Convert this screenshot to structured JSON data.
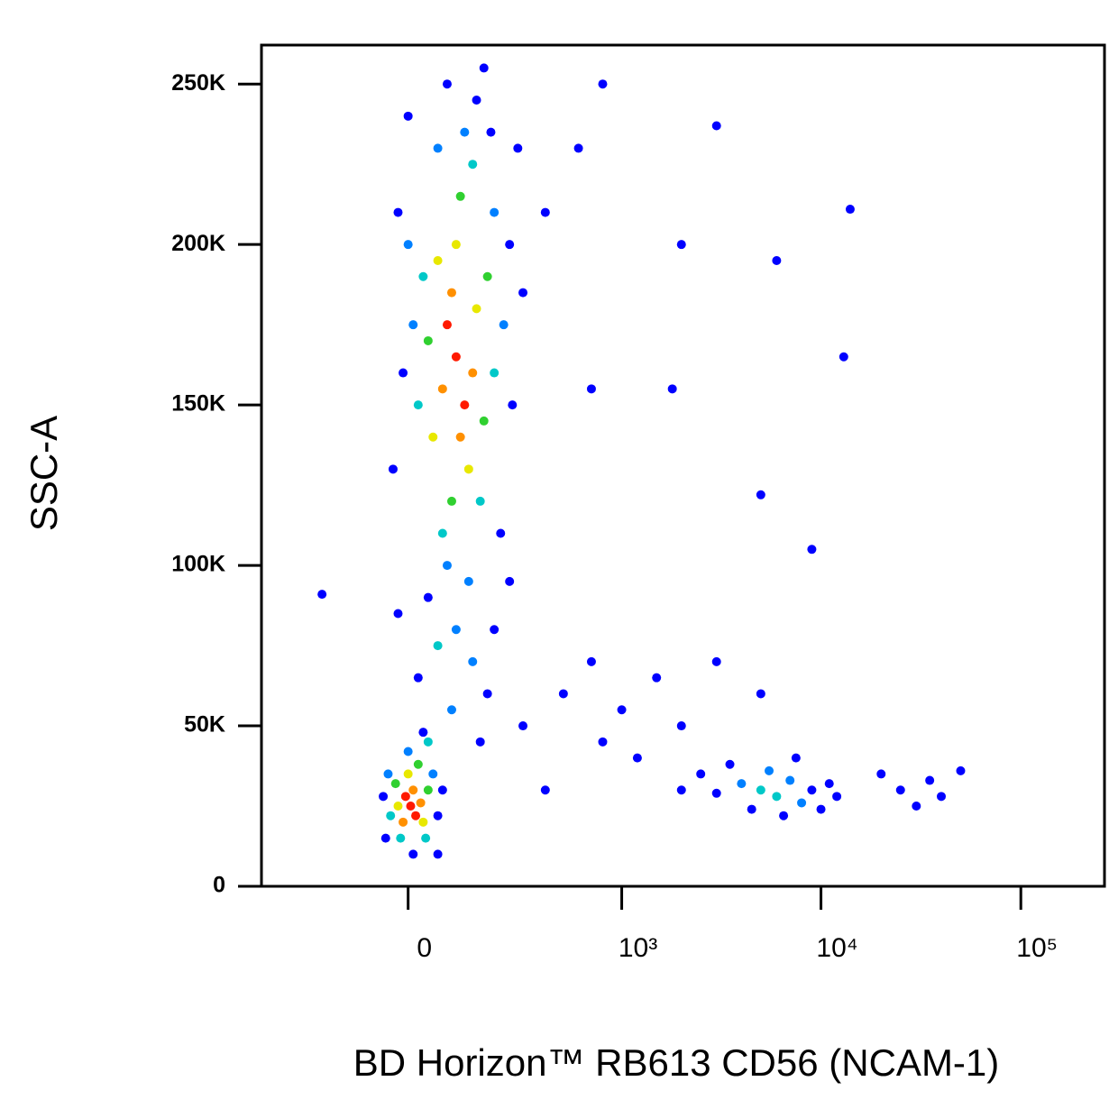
{
  "chart_data": {
    "type": "scatter",
    "x_label": "BD Horizon™ RB613 CD56 (NCAM-1)",
    "y_label": "SSC-A",
    "xscale": "biexponential",
    "xlim": [
      -450,
      262144
    ],
    "ylim": [
      0,
      262144
    ],
    "xticks": [
      0,
      {
        "value": 1000,
        "label": "10³"
      },
      {
        "value": 10000,
        "label": "10⁴"
      },
      {
        "value": 100000,
        "label": "10⁵"
      }
    ],
    "yticks": [
      0,
      {
        "value": 50000,
        "label": "50K"
      },
      {
        "value": 100000,
        "label": "100K"
      },
      {
        "value": 150000,
        "label": "150K"
      },
      {
        "value": 200000,
        "label": "200K"
      },
      {
        "value": 250000,
        "label": "250K"
      }
    ],
    "x": [
      100,
      120,
      80,
      110,
      90,
      140,
      70,
      130,
      60,
      150,
      100,
      50,
      170,
      40,
      110,
      90,
      180,
      30,
      140,
      70,
      200,
      20,
      160,
      120,
      60,
      10,
      230,
      80,
      200,
      0,
      130,
      150,
      80,
      -10,
      260,
      250,
      -20,
      40,
      170,
      280,
      220,
      -30,
      300,
      0,
      190,
      100,
      60,
      140,
      20,
      180,
      90,
      40,
      200,
      250,
      -20,
      160,
      5,
      15,
      -5,
      10,
      -10,
      25,
      0,
      30,
      -20,
      20,
      -25,
      40,
      -15,
      35,
      -35,
      50,
      0,
      -40,
      60,
      -45,
      30,
      70,
      -50,
      10,
      5000,
      6000,
      4000,
      7000,
      3000,
      8000,
      9000,
      5500,
      4500,
      2500,
      11000,
      10000,
      3500,
      7500,
      6500,
      2000,
      12000,
      20000,
      25000,
      30000,
      35000,
      40000,
      50000,
      500,
      700,
      1000,
      1500,
      2000,
      800,
      1200,
      3000,
      5000,
      600,
      800,
      400,
      2000,
      3000,
      6000,
      14000,
      1800,
      13000,
      700,
      5000,
      9000,
      400,
      300,
      -200,
      60
    ],
    "y": [
      165000,
      150000,
      175000,
      140000,
      185000,
      160000,
      155000,
      130000,
      195000,
      180000,
      200000,
      140000,
      145000,
      170000,
      215000,
      120000,
      190000,
      190000,
      225000,
      110000,
      160000,
      150000,
      120000,
      235000,
      230000,
      175000,
      175000,
      100000,
      210000,
      200000,
      95000,
      245000,
      250000,
      160000,
      150000,
      200000,
      210000,
      90000,
      255000,
      230000,
      110000,
      130000,
      185000,
      240000,
      235000,
      80000,
      75000,
      70000,
      65000,
      60000,
      55000,
      45000,
      80000,
      95000,
      85000,
      45000,
      25000,
      22000,
      28000,
      30000,
      20000,
      26000,
      35000,
      20000,
      25000,
      38000,
      32000,
      30000,
      15000,
      15000,
      22000,
      35000,
      42000,
      35000,
      22000,
      15000,
      48000,
      30000,
      28000,
      10000,
      30000,
      28000,
      32000,
      33000,
      29000,
      26000,
      30000,
      36000,
      24000,
      35000,
      32000,
      24000,
      38000,
      40000,
      22000,
      30000,
      28000,
      35000,
      30000,
      25000,
      33000,
      28000,
      36000,
      60000,
      70000,
      55000,
      65000,
      50000,
      45000,
      40000,
      70000,
      60000,
      230000,
      250000,
      210000,
      200000,
      237000,
      195000,
      211000,
      155000,
      165000,
      155000,
      122000,
      105000,
      30000,
      50000,
      91000,
      10000
    ],
    "colors": [
      "#ff1a00",
      "#ff1a00",
      "#ff1a00",
      "#ff9000",
      "#ff9000",
      "#ff9000",
      "#ff9000",
      "#e8e800",
      "#e8e800",
      "#e8e800",
      "#e8e800",
      "#e8e800",
      "#30d030",
      "#30d030",
      "#30d030",
      "#30d030",
      "#30d030",
      "#00c8c8",
      "#00c8c8",
      "#00c8c8",
      "#00c8c8",
      "#00c8c8",
      "#00c8c8",
      "#0080ff",
      "#0080ff",
      "#0080ff",
      "#0080ff",
      "#0080ff",
      "#0080ff",
      "#0080ff",
      "#0080ff",
      "#0000ff",
      "#0000ff",
      "#0000ff",
      "#0000ff",
      "#0000ff",
      "#0000ff",
      "#0000ff",
      "#0000ff",
      "#0000ff",
      "#0000ff",
      "#0000ff",
      "#0000ff",
      "#0000ff",
      "#0000ff",
      "#0080ff",
      "#00c8c8",
      "#0080ff",
      "#0000ff",
      "#0000ff",
      "#0080ff",
      "#00c8c8",
      "#0000ff",
      "#0000ff",
      "#0000ff",
      "#0000ff",
      "#ff1a00",
      "#ff1a00",
      "#ff1a00",
      "#ff9000",
      "#ff9000",
      "#ff9000",
      "#e8e800",
      "#e8e800",
      "#e8e800",
      "#30d030",
      "#30d030",
      "#30d030",
      "#00c8c8",
      "#00c8c8",
      "#00c8c8",
      "#0080ff",
      "#0080ff",
      "#0080ff",
      "#0000ff",
      "#0000ff",
      "#0000ff",
      "#0000ff",
      "#0000ff",
      "#0000ff",
      "#00c8c8",
      "#00c8c8",
      "#0080ff",
      "#0080ff",
      "#0000ff",
      "#0080ff",
      "#0000ff",
      "#0080ff",
      "#0000ff",
      "#0000ff",
      "#0000ff",
      "#0000ff",
      "#0000ff",
      "#0000ff",
      "#0000ff",
      "#0000ff",
      "#0000ff",
      "#0000ff",
      "#0000ff",
      "#0000ff",
      "#0000ff",
      "#0000ff",
      "#0000ff",
      "#0000ff",
      "#0000ff",
      "#0000ff",
      "#0000ff",
      "#0000ff",
      "#0000ff",
      "#0000ff",
      "#0000ff",
      "#0000ff",
      "#0000ff",
      "#0000ff",
      "#0000ff",
      "#0000ff",
      "#0000ff",
      "#0000ff",
      "#0000ff",
      "#0000ff",
      "#0000ff",
      "#0000ff",
      "#0000ff",
      "#0000ff",
      "#0000ff",
      "#0000ff",
      "#0000ff",
      "#0000ff"
    ]
  }
}
